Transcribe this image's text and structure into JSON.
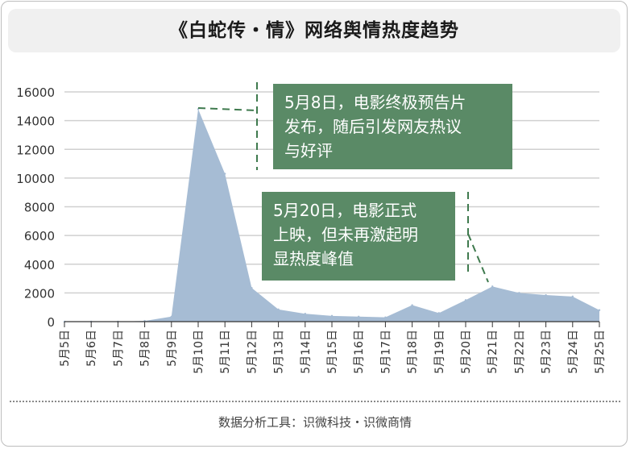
{
  "title": "《白蛇传・情》网络舆情热度趋势",
  "source": "数据分析工具：识微科技・识微商情",
  "colors": {
    "area_fill": "#a6bcd4",
    "grid": "#d0d0d0",
    "annotation_bg": "#5a8a66",
    "dash": "#3f7a4e"
  },
  "chart_data": {
    "type": "area",
    "title": "《白蛇传・情》网络舆情热度趋势",
    "xlabel": "",
    "ylabel": "",
    "categories": [
      "5月5日",
      "5月6日",
      "5月7日",
      "5月8日",
      "5月9日",
      "5月10日",
      "5月11日",
      "5月12日",
      "5月13日",
      "5月14日",
      "5月15日",
      "5月16日",
      "5月17日",
      "5月18日",
      "5月19日",
      "5月20日",
      "5月21日",
      "5月22日",
      "5月23日",
      "5月24日",
      "5月25日"
    ],
    "values": [
      0,
      0,
      0,
      50,
      350,
      14800,
      10300,
      2350,
      850,
      550,
      400,
      350,
      300,
      1150,
      600,
      1500,
      2450,
      2000,
      1850,
      1750,
      800
    ],
    "ylim": [
      0,
      16000
    ],
    "yticks": [
      "0",
      "2000",
      "4000",
      "6000",
      "8000",
      "10000",
      "12000",
      "14000",
      "16000"
    ],
    "grid": true,
    "annotations": [
      {
        "text_lines": [
          "5月8日，电影终极预告片",
          "发布，随后引发网友热议",
          "与好评"
        ]
      },
      {
        "text_lines": [
          "5月20日，电影正式",
          "上映，但未再激起明",
          "显热度峰值"
        ]
      }
    ]
  }
}
